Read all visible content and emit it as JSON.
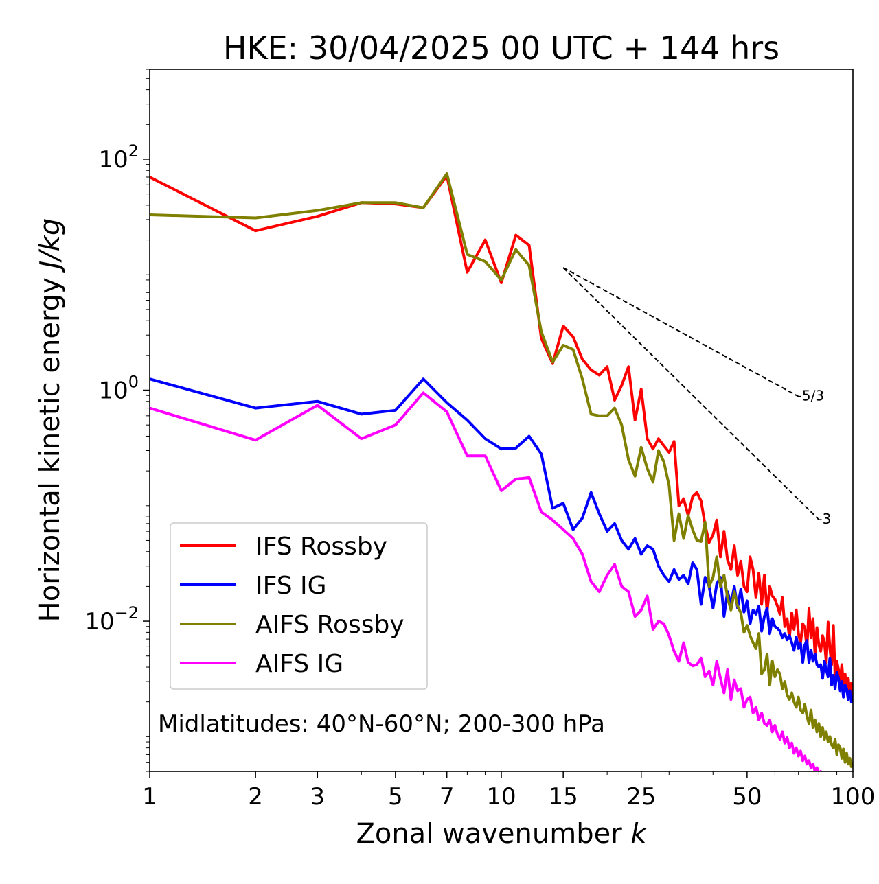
{
  "chart_data": {
    "type": "line",
    "title": "HKE: 30/04/2025 00 UTC + 144 hrs",
    "xlabel": "Zonal wavenumber ",
    "xlabel_var": "k",
    "ylabel": "Horizontal kinetic energy ",
    "ylabel_unit": "J/kg",
    "xscale": "log",
    "yscale": "log",
    "xlim": [
      1,
      100
    ],
    "ylim": [
      0.0005,
      600
    ],
    "x_ticks": [
      1,
      2,
      3,
      5,
      7,
      10,
      15,
      25,
      50,
      100
    ],
    "x_tick_labels": [
      "1",
      "2",
      "3",
      "5",
      "7",
      "10",
      "15",
      "25",
      "50",
      "100"
    ],
    "y_ticks": [
      {
        "value": 100,
        "base": "10",
        "exp": "2"
      },
      {
        "value": 1,
        "base": "10",
        "exp": "0"
      },
      {
        "value": 0.01,
        "base": "10",
        "exp": "−2"
      }
    ],
    "grid": false,
    "legend_position": "lower-left",
    "annotation": "Midlatitudes: 40°N-60°N; 200-300 hPa",
    "reference_lines": [
      {
        "label": "-5/3",
        "slope": -1.6667,
        "x_start": 15,
        "y_start": 11.5,
        "x_end": 70
      },
      {
        "label": "-3",
        "slope": -3,
        "x_start": 15,
        "y_start": 11.5,
        "x_end": 80
      }
    ],
    "series": [
      {
        "name": "IFS Rossby",
        "color": "#ff0000",
        "x": [
          1,
          2,
          3,
          4,
          5,
          6,
          7,
          8,
          9,
          10,
          11,
          12,
          13,
          14,
          15,
          16,
          17,
          18,
          19,
          20,
          21,
          22,
          23,
          24,
          25,
          26,
          27,
          28,
          29,
          30,
          31,
          32,
          33,
          34,
          35,
          36,
          37,
          38,
          39,
          40,
          41,
          42,
          43,
          44,
          45,
          46,
          47,
          48,
          49,
          50,
          51,
          52,
          53,
          54,
          55,
          56,
          57,
          58,
          59,
          60,
          61,
          62,
          63,
          64,
          65,
          66,
          67,
          68,
          69,
          70,
          71,
          72,
          73,
          74,
          75,
          76,
          77,
          78,
          79,
          80,
          81,
          82,
          83,
          84,
          85,
          86,
          87,
          88,
          89,
          90,
          91,
          92,
          93,
          94,
          95,
          96,
          97,
          98,
          99,
          100
        ],
        "y": [
          70,
          24,
          32,
          42,
          41,
          38,
          72,
          10.5,
          20,
          8.5,
          22,
          18,
          2.8,
          1.7,
          3.6,
          2.9,
          1.85,
          1.5,
          1.35,
          1.6,
          0.82,
          1.1,
          1.6,
          0.55,
          1.02,
          0.38,
          0.31,
          0.38,
          0.33,
          0.29,
          0.36,
          0.1,
          0.115,
          0.082,
          0.12,
          0.13,
          0.11,
          0.068,
          0.048,
          0.056,
          0.075,
          0.036,
          0.06,
          0.034,
          0.028,
          0.045,
          0.025,
          0.033,
          0.02,
          0.018,
          0.036,
          0.028,
          0.016,
          0.026,
          0.014,
          0.025,
          0.012,
          0.02,
          0.0165,
          0.0155,
          0.0135,
          0.0115,
          0.016,
          0.009,
          0.0105,
          0.0072,
          0.0118,
          0.0085,
          0.0125,
          0.0078,
          0.0065,
          0.0095,
          0.0088,
          0.0058,
          0.0128,
          0.0072,
          0.0105,
          0.0052,
          0.0088,
          0.0062,
          0.0055,
          0.0075,
          0.0065,
          0.0044,
          0.0098,
          0.0058,
          0.0042,
          0.0092,
          0.0032,
          0.0045,
          0.0038,
          0.003,
          0.0042,
          0.0028,
          0.0035,
          0.0025,
          0.0032,
          0.0024,
          0.0029,
          0.0022
        ]
      },
      {
        "name": "IFS IG",
        "color": "#0000ff",
        "x": [
          1,
          2,
          3,
          4,
          5,
          6,
          7,
          8,
          9,
          10,
          11,
          12,
          13,
          14,
          15,
          16,
          17,
          18,
          19,
          20,
          21,
          22,
          23,
          24,
          25,
          26,
          27,
          28,
          29,
          30,
          31,
          32,
          33,
          34,
          35,
          36,
          37,
          38,
          39,
          40,
          41,
          42,
          43,
          44,
          45,
          46,
          47,
          48,
          49,
          50,
          51,
          52,
          53,
          54,
          55,
          56,
          57,
          58,
          59,
          60,
          61,
          62,
          63,
          64,
          65,
          66,
          67,
          68,
          69,
          70,
          71,
          72,
          73,
          74,
          75,
          76,
          77,
          78,
          79,
          80,
          81,
          82,
          83,
          84,
          85,
          86,
          87,
          88,
          89,
          90,
          91,
          92,
          93,
          94,
          95,
          96,
          97,
          98,
          99,
          100
        ],
        "y": [
          1.25,
          0.7,
          0.8,
          0.62,
          0.67,
          1.25,
          0.78,
          0.55,
          0.38,
          0.31,
          0.315,
          0.4,
          0.28,
          0.095,
          0.105,
          0.062,
          0.078,
          0.13,
          0.085,
          0.06,
          0.07,
          0.05,
          0.042,
          0.052,
          0.038,
          0.045,
          0.042,
          0.03,
          0.025,
          0.022,
          0.028,
          0.023,
          0.025,
          0.021,
          0.032,
          0.028,
          0.014,
          0.024,
          0.02,
          0.013,
          0.021,
          0.024,
          0.011,
          0.018,
          0.014,
          0.02,
          0.013,
          0.019,
          0.012,
          0.015,
          0.0095,
          0.0125,
          0.0115,
          0.0135,
          0.0082,
          0.011,
          0.013,
          0.0078,
          0.0105,
          0.009,
          0.0087,
          0.0082,
          0.0072,
          0.0078,
          0.0069,
          0.0075,
          0.0065,
          0.0056,
          0.0073,
          0.0058,
          0.0064,
          0.0044,
          0.0062,
          0.0068,
          0.0044,
          0.0056,
          0.0045,
          0.0052,
          0.0042,
          0.004,
          0.0042,
          0.0032,
          0.0045,
          0.0038,
          0.0033,
          0.0048,
          0.0028,
          0.0034,
          0.0026,
          0.0036,
          0.0032,
          0.0025,
          0.003,
          0.0022,
          0.0028,
          0.0026,
          0.0021,
          0.0025,
          0.002,
          0.0023
        ]
      },
      {
        "name": "AIFS Rossby",
        "color": "#808000",
        "x": [
          1,
          2,
          3,
          4,
          5,
          6,
          7,
          8,
          9,
          10,
          11,
          12,
          13,
          14,
          15,
          16,
          17,
          18,
          19,
          20,
          21,
          22,
          23,
          24,
          25,
          26,
          27,
          28,
          29,
          30,
          31,
          32,
          33,
          34,
          35,
          36,
          37,
          38,
          39,
          40,
          41,
          42,
          43,
          44,
          45,
          46,
          47,
          48,
          49,
          50,
          51,
          52,
          53,
          54,
          55,
          56,
          57,
          58,
          59,
          60,
          61,
          62,
          63,
          64,
          65,
          66,
          67,
          68,
          69,
          70,
          71,
          72,
          73,
          74,
          75,
          76,
          77,
          78,
          79,
          80,
          81,
          82,
          83,
          84,
          85,
          86,
          87,
          88,
          89,
          90,
          91,
          92,
          93,
          94,
          95,
          96,
          97,
          98,
          99,
          100
        ],
        "y": [
          33,
          31,
          36,
          42,
          42,
          38,
          75,
          15,
          13,
          9,
          16.5,
          12,
          3.2,
          1.75,
          2.45,
          2.25,
          1.25,
          0.62,
          0.6,
          0.6,
          0.7,
          0.5,
          0.25,
          0.18,
          0.32,
          0.21,
          0.16,
          0.3,
          0.24,
          0.15,
          0.05,
          0.085,
          0.052,
          0.082,
          0.062,
          0.05,
          0.049,
          0.072,
          0.02,
          0.024,
          0.036,
          0.02,
          0.025,
          0.016,
          0.0125,
          0.018,
          0.0135,
          0.0118,
          0.008,
          0.0092,
          0.0075,
          0.0065,
          0.0058,
          0.0078,
          0.0035,
          0.0038,
          0.0052,
          0.0028,
          0.0045,
          0.0033,
          0.0038,
          0.0035,
          0.0026,
          0.003,
          0.0023,
          0.0021,
          0.0024,
          0.002,
          0.0018,
          0.0022,
          0.0017,
          0.0016,
          0.0019,
          0.0015,
          0.0013,
          0.0017,
          0.0012,
          0.0014,
          0.0011,
          0.0013,
          0.001,
          0.0012,
          0.00095,
          0.0011,
          0.0009,
          0.001,
          0.00085,
          0.0008,
          0.00095,
          0.0007,
          0.00085,
          0.0008,
          0.00065,
          0.00078,
          0.0006,
          0.00072,
          0.00058,
          0.00065,
          0.00055,
          0.0006
        ]
      },
      {
        "name": "AIFS IG",
        "color": "#ff00ff",
        "x": [
          1,
          2,
          3,
          4,
          5,
          6,
          7,
          8,
          9,
          10,
          11,
          12,
          13,
          14,
          15,
          16,
          17,
          18,
          19,
          20,
          21,
          22,
          23,
          24,
          25,
          26,
          27,
          28,
          29,
          30,
          31,
          32,
          33,
          34,
          35,
          36,
          37,
          38,
          39,
          40,
          41,
          42,
          43,
          44,
          45,
          46,
          47,
          48,
          49,
          50,
          51,
          52,
          53,
          54,
          55,
          56,
          57,
          58,
          59,
          60,
          61,
          62,
          63,
          64,
          65,
          66,
          67,
          68,
          69,
          70,
          71,
          72,
          73,
          74,
          75,
          76,
          77,
          78,
          79,
          80,
          81,
          82,
          83,
          84,
          85,
          86,
          87,
          88,
          89,
          90,
          91,
          92,
          93,
          94,
          95,
          96,
          97,
          98,
          99,
          100
        ],
        "y": [
          0.7,
          0.37,
          0.74,
          0.38,
          0.5,
          0.95,
          0.65,
          0.27,
          0.27,
          0.135,
          0.17,
          0.175,
          0.088,
          0.075,
          0.062,
          0.052,
          0.038,
          0.022,
          0.018,
          0.025,
          0.031,
          0.02,
          0.018,
          0.011,
          0.0125,
          0.0165,
          0.0085,
          0.01,
          0.0095,
          0.0075,
          0.0055,
          0.0045,
          0.0065,
          0.0044,
          0.0041,
          0.0042,
          0.0048,
          0.0033,
          0.0037,
          0.0028,
          0.0045,
          0.0032,
          0.0024,
          0.0038,
          0.0021,
          0.0031,
          0.0025,
          0.0026,
          0.0018,
          0.0021,
          0.0022,
          0.0016,
          0.0018,
          0.0014,
          0.0016,
          0.0013,
          0.00125,
          0.0014,
          0.0011,
          0.00125,
          0.00105,
          0.00095,
          0.0011,
          0.00088,
          0.00098,
          0.0008,
          0.00088,
          0.00072,
          0.0008,
          0.00068,
          0.00075,
          0.00062,
          0.00068,
          0.00058,
          0.00062,
          0.00054,
          0.00058,
          0.0005,
          0.00054,
          0.00048,
          0.0005,
          0.00045,
          0.00048,
          0.00043,
          0.00046,
          0.00041,
          0.00043,
          0.0004,
          0.00042,
          0.00038,
          0.0004,
          0.00036,
          0.00038,
          0.00035,
          0.00037,
          0.00034,
          0.00035,
          0.00033,
          0.00034,
          0.00032
        ]
      }
    ]
  }
}
